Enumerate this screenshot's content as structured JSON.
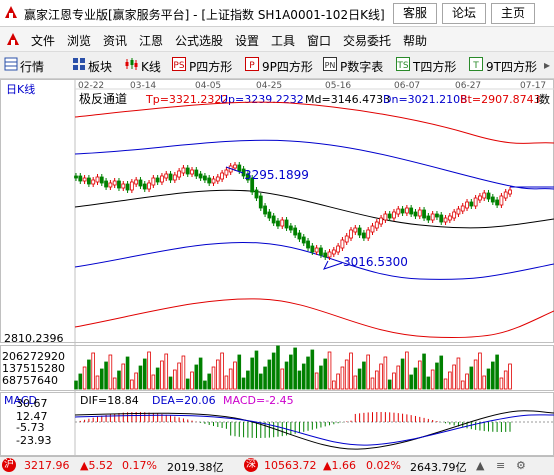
{
  "window": {
    "title": "赢家江恩专业版[赢家服务平台] - [上证指数  SH1A0001-102日K线]",
    "buttons": [
      "客服",
      "论坛",
      "主页"
    ]
  },
  "menu": [
    "文件",
    "浏览",
    "资讯",
    "江恩",
    "公式选股",
    "设置",
    "工具",
    "窗口",
    "交易委托",
    "帮助"
  ],
  "toolbar": [
    {
      "label": "行情",
      "icon": "quote-grid-icon"
    },
    {
      "label": "板块",
      "icon": "sector-grid-icon"
    },
    {
      "label": "K线",
      "icon": "candlestick-icon"
    },
    {
      "label": "P四方形",
      "icon": "p-square-icon"
    },
    {
      "label": "9P四方形",
      "icon": "9p-square-icon"
    },
    {
      "label": "P数字表",
      "icon": "pn-table-icon"
    },
    {
      "label": "T四方形",
      "icon": "t-square-icon"
    },
    {
      "label": "9T四方形",
      "icon": "9t-square-icon"
    }
  ],
  "chart": {
    "panel_label": "日K线",
    "indicator_name": "极反通道",
    "legend": [
      {
        "text": "Tp=3321.2322",
        "color": "#e00000"
      },
      {
        "text": "Up=3239.2232",
        "color": "#0000cc"
      },
      {
        "text": "Md=3146.4733",
        "color": "#000000"
      },
      {
        "text": "Dn=3021.2108",
        "color": "#0000cc"
      },
      {
        "text": "Bt=2907.8743",
        "color": "#e00000"
      },
      {
        "text": "i数",
        "color": "#000000"
      }
    ],
    "dates": [
      "02-22",
      "03-14",
      "04-05",
      "04-25",
      "05-16",
      "06-07",
      "06-27",
      "07-17"
    ],
    "annotation_high": "3295.1899",
    "annotation_low": "3016.5300",
    "price_axis_label": "2810.2396",
    "volume_axis": [
      "206272920",
      "137515280",
      "68757640"
    ]
  },
  "macd": {
    "title": "MACD",
    "dif": "DIF=18.84",
    "dea": "DEA=20.06",
    "macd": "MACD=-2.45",
    "axis": [
      "30.67",
      "12.47",
      "-5.73",
      "-23.93"
    ]
  },
  "status": {
    "sh_value": "3217.96",
    "sh_change": "▲5.52",
    "sh_pct": "0.17%",
    "sh_amount": "2019.38亿",
    "sz_value": "10563.72",
    "sz_change": "▲1.66",
    "sz_pct": "0.02%",
    "sz_amount": "2643.79亿",
    "sh_icon_text": "沪",
    "sz_icon_text": "深"
  },
  "colors": {
    "up": "#e00000",
    "down": "#008000",
    "mid": "#000000",
    "band": "#0000cc"
  }
}
